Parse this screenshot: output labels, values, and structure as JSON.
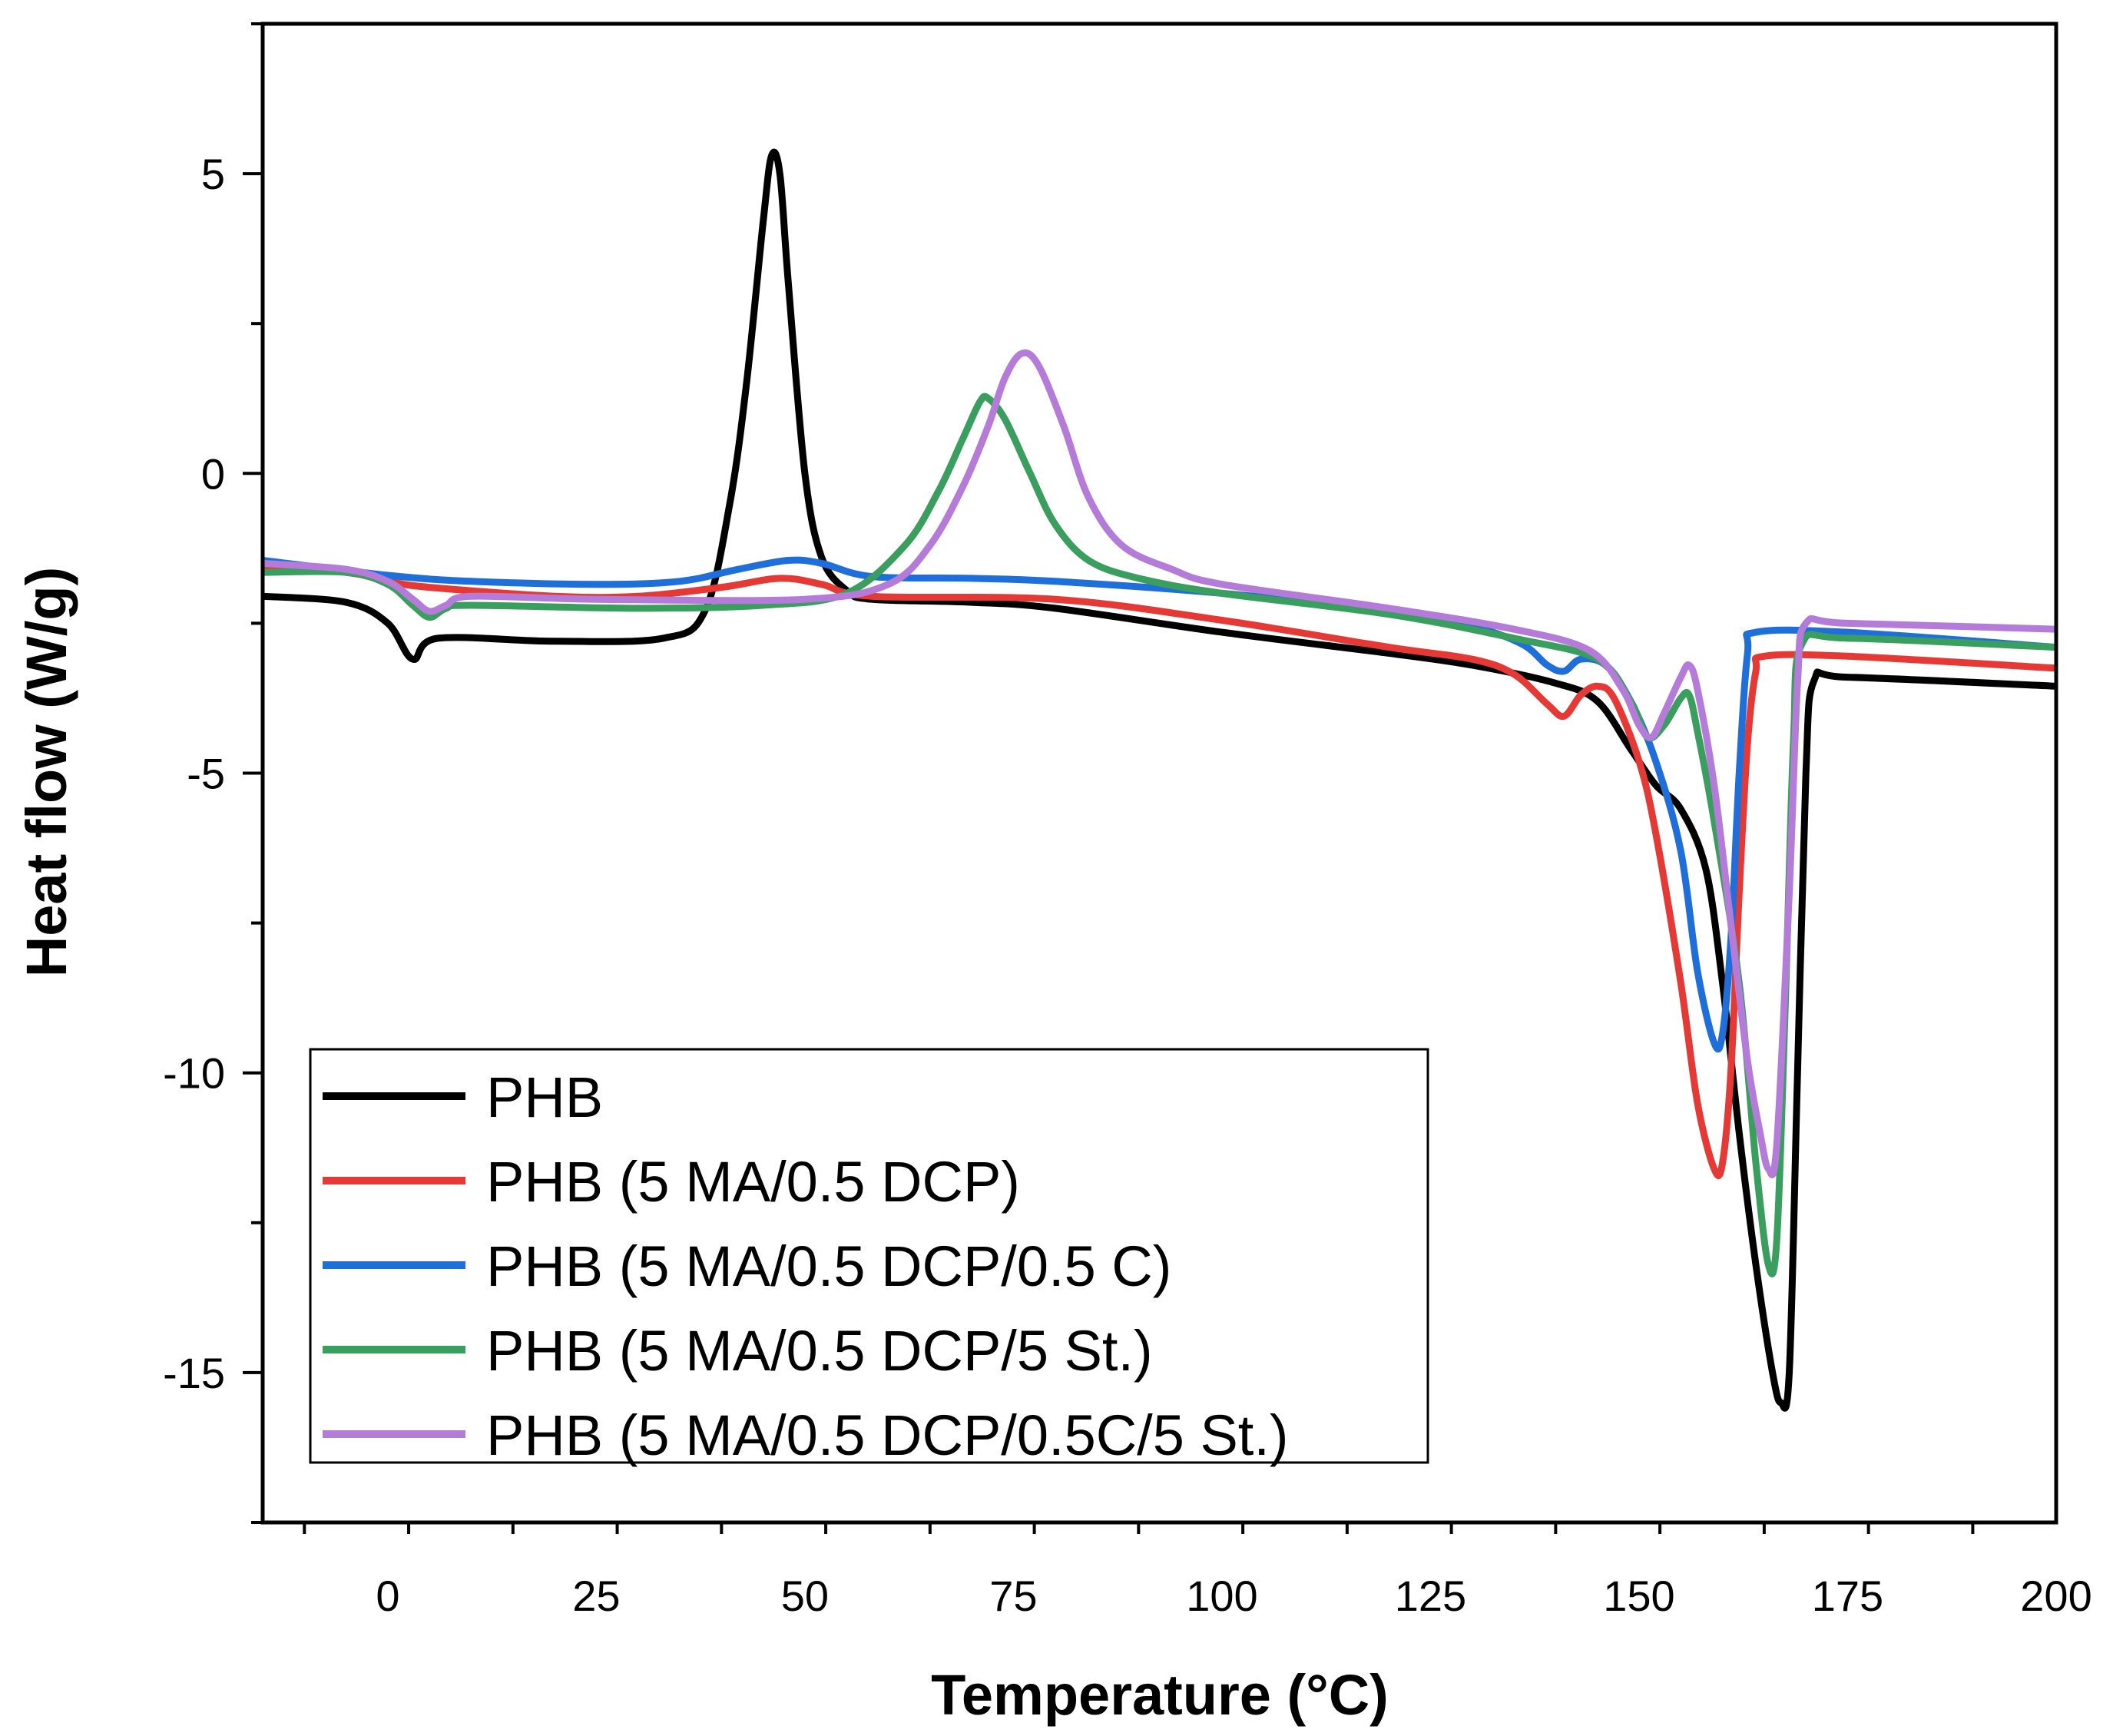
{
  "chart_data": {
    "type": "line",
    "title": "",
    "xlabel": "Temperature (°C)",
    "ylabel": "Heat flow (W/g)",
    "xlim": [
      -15,
      200
    ],
    "ylim": [
      -17.5,
      7.5
    ],
    "x_ticks": [
      0,
      25,
      50,
      75,
      100,
      125,
      150,
      175,
      200
    ],
    "x_tick_labels": [
      "0",
      "25",
      "50",
      "75",
      "100",
      "125",
      "150",
      "175",
      "200"
    ],
    "y_ticks": [
      5,
      0,
      -5,
      -10,
      -15
    ],
    "y_tick_labels": [
      "5",
      "0",
      "-5",
      "-10",
      "-15"
    ],
    "grid": false,
    "legend_position": "bottom-left",
    "series": [
      {
        "name": "PHB",
        "color": "#000000",
        "points": [
          [
            -15,
            -2.05
          ],
          [
            -5,
            -2.15
          ],
          [
            0,
            -2.5
          ],
          [
            3,
            -3.1
          ],
          [
            6,
            -2.75
          ],
          [
            20,
            -2.8
          ],
          [
            33,
            -2.75
          ],
          [
            38,
            -2.3
          ],
          [
            41,
            -0.5
          ],
          [
            43,
            1.5
          ],
          [
            45,
            4.2
          ],
          [
            46,
            5.3
          ],
          [
            47,
            5.0
          ],
          [
            48,
            3.2
          ],
          [
            50,
            0.0
          ],
          [
            52,
            -1.4
          ],
          [
            55,
            -1.95
          ],
          [
            58,
            -2.1
          ],
          [
            70,
            -2.15
          ],
          [
            80,
            -2.25
          ],
          [
            100,
            -2.65
          ],
          [
            120,
            -3.0
          ],
          [
            130,
            -3.2
          ],
          [
            140,
            -3.5
          ],
          [
            145,
            -3.8
          ],
          [
            149,
            -4.6
          ],
          [
            152,
            -5.2
          ],
          [
            155,
            -5.6
          ],
          [
            158,
            -6.6
          ],
          [
            160,
            -8.5
          ],
          [
            162,
            -11.0
          ],
          [
            164,
            -13.2
          ],
          [
            166,
            -15.0
          ],
          [
            167,
            -15.5
          ],
          [
            168,
            -15.0
          ],
          [
            169,
            -10.0
          ],
          [
            170,
            -5.0
          ],
          [
            171,
            -3.45
          ],
          [
            175,
            -3.4
          ],
          [
            200,
            -3.55
          ]
        ]
      },
      {
        "name": "PHB (5 MA/0.5 DCP)",
        "color": "#e53935",
        "points": [
          [
            -15,
            -1.55
          ],
          [
            -5,
            -1.65
          ],
          [
            0,
            -1.8
          ],
          [
            5,
            -1.9
          ],
          [
            20,
            -2.05
          ],
          [
            30,
            -2.05
          ],
          [
            40,
            -1.9
          ],
          [
            47,
            -1.75
          ],
          [
            52,
            -1.85
          ],
          [
            58,
            -2.05
          ],
          [
            80,
            -2.1
          ],
          [
            100,
            -2.45
          ],
          [
            120,
            -2.9
          ],
          [
            130,
            -3.1
          ],
          [
            135,
            -3.35
          ],
          [
            139,
            -3.85
          ],
          [
            141,
            -4.05
          ],
          [
            143,
            -3.7
          ],
          [
            145,
            -3.55
          ],
          [
            147,
            -3.75
          ],
          [
            150,
            -4.8
          ],
          [
            152,
            -6.0
          ],
          [
            155,
            -8.5
          ],
          [
            157,
            -10.5
          ],
          [
            159,
            -11.6
          ],
          [
            160,
            -11.5
          ],
          [
            161,
            -10.0
          ],
          [
            162,
            -7.0
          ],
          [
            163,
            -4.5
          ],
          [
            164,
            -3.3
          ],
          [
            165,
            -3.05
          ],
          [
            175,
            -3.05
          ],
          [
            200,
            -3.25
          ]
        ]
      },
      {
        "name": "PHB (5 MA/0.5 DCP/0.5 C)",
        "color": "#1e6fd9",
        "points": [
          [
            -15,
            -1.45
          ],
          [
            0,
            -1.7
          ],
          [
            10,
            -1.8
          ],
          [
            25,
            -1.85
          ],
          [
            35,
            -1.8
          ],
          [
            42,
            -1.6
          ],
          [
            48,
            -1.45
          ],
          [
            52,
            -1.5
          ],
          [
            58,
            -1.72
          ],
          [
            70,
            -1.75
          ],
          [
            80,
            -1.8
          ],
          [
            100,
            -2.0
          ],
          [
            120,
            -2.3
          ],
          [
            130,
            -2.55
          ],
          [
            136,
            -2.85
          ],
          [
            139,
            -3.2
          ],
          [
            141,
            -3.3
          ],
          [
            143,
            -3.1
          ],
          [
            146,
            -3.2
          ],
          [
            149,
            -3.8
          ],
          [
            152,
            -4.8
          ],
          [
            155,
            -6.3
          ],
          [
            157,
            -8.3
          ],
          [
            159,
            -9.5
          ],
          [
            160,
            -9.35
          ],
          [
            161,
            -7.8
          ],
          [
            162,
            -5.0
          ],
          [
            163,
            -3.0
          ],
          [
            164,
            -2.65
          ],
          [
            175,
            -2.65
          ],
          [
            200,
            -2.9
          ]
        ]
      },
      {
        "name": "PHB (5 MA/0.5 DCP/5 St.)",
        "color": "#3a9e5f",
        "points": [
          [
            -15,
            -1.65
          ],
          [
            -5,
            -1.65
          ],
          [
            0,
            -1.85
          ],
          [
            3,
            -2.2
          ],
          [
            5,
            -2.4
          ],
          [
            7,
            -2.25
          ],
          [
            10,
            -2.2
          ],
          [
            30,
            -2.25
          ],
          [
            45,
            -2.2
          ],
          [
            55,
            -2.0
          ],
          [
            62,
            -1.2
          ],
          [
            66,
            -0.3
          ],
          [
            69,
            0.6
          ],
          [
            71,
            1.2
          ],
          [
            72,
            1.25
          ],
          [
            74,
            0.9
          ],
          [
            77,
            0.0
          ],
          [
            80,
            -0.85
          ],
          [
            84,
            -1.45
          ],
          [
            90,
            -1.75
          ],
          [
            100,
            -2.0
          ],
          [
            120,
            -2.35
          ],
          [
            135,
            -2.75
          ],
          [
            145,
            -3.1
          ],
          [
            149,
            -3.8
          ],
          [
            151,
            -4.4
          ],
          [
            153,
            -4.2
          ],
          [
            155,
            -3.75
          ],
          [
            156,
            -3.7
          ],
          [
            157,
            -4.3
          ],
          [
            159,
            -5.8
          ],
          [
            162,
            -8.5
          ],
          [
            164,
            -11.5
          ],
          [
            165.5,
            -13.2
          ],
          [
            166.5,
            -12.8
          ],
          [
            167.5,
            -9.0
          ],
          [
            168.5,
            -4.5
          ],
          [
            169.5,
            -2.85
          ],
          [
            175,
            -2.75
          ],
          [
            200,
            -2.9
          ]
        ]
      },
      {
        "name": "PHB (5 MA/0.5 DCP/0.5C/5 St.)",
        "color": "#b57bd9",
        "points": [
          [
            -15,
            -1.5
          ],
          [
            -5,
            -1.6
          ],
          [
            0,
            -1.8
          ],
          [
            3,
            -2.1
          ],
          [
            5,
            -2.3
          ],
          [
            7,
            -2.2
          ],
          [
            10,
            -2.05
          ],
          [
            25,
            -2.1
          ],
          [
            50,
            -2.1
          ],
          [
            60,
            -1.85
          ],
          [
            65,
            -1.2
          ],
          [
            69,
            -0.2
          ],
          [
            72,
            0.8
          ],
          [
            74,
            1.6
          ],
          [
            76,
            2.0
          ],
          [
            78,
            1.8
          ],
          [
            81,
            0.8
          ],
          [
            84,
            -0.4
          ],
          [
            88,
            -1.2
          ],
          [
            94,
            -1.6
          ],
          [
            100,
            -1.85
          ],
          [
            120,
            -2.25
          ],
          [
            135,
            -2.6
          ],
          [
            144,
            -2.95
          ],
          [
            148,
            -3.6
          ],
          [
            150,
            -4.2
          ],
          [
            151.5,
            -4.4
          ],
          [
            153,
            -4.0
          ],
          [
            155,
            -3.4
          ],
          [
            156,
            -3.2
          ],
          [
            157,
            -3.6
          ],
          [
            159,
            -5.2
          ],
          [
            161,
            -7.5
          ],
          [
            163,
            -9.8
          ],
          [
            164.5,
            -11.0
          ],
          [
            165.5,
            -11.6
          ],
          [
            166.5,
            -11.2
          ],
          [
            168,
            -7.0
          ],
          [
            169,
            -3.5
          ],
          [
            170,
            -2.5
          ],
          [
            175,
            -2.5
          ],
          [
            200,
            -2.6
          ]
        ]
      }
    ]
  }
}
